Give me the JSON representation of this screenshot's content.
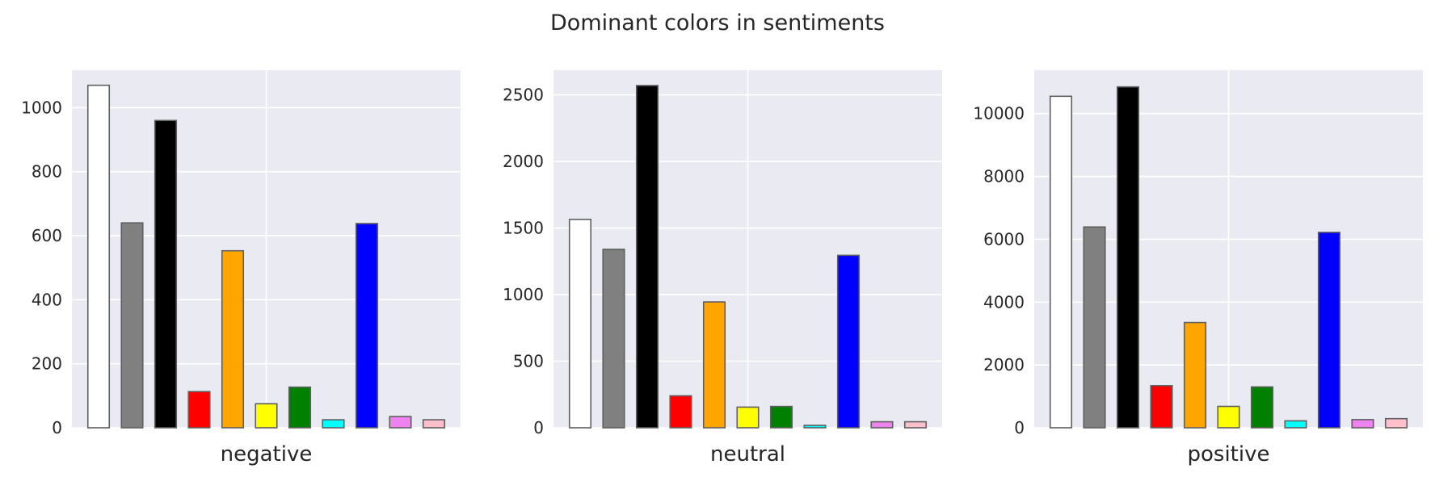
{
  "title": "Dominant colors in sentiments",
  "chart_data": [
    {
      "type": "bar",
      "xlabel": "negative",
      "ylabel": "",
      "categories": [
        "white",
        "grey",
        "black",
        "red",
        "orange",
        "yellow",
        "green",
        "cyan",
        "blue",
        "violet",
        "pink"
      ],
      "bar_colors": [
        "#ffffff",
        "#808080",
        "#000000",
        "#ff0000",
        "#ffa500",
        "#ffff00",
        "#008000",
        "#00ffff",
        "#0000ff",
        "#ee82ee",
        "#ffc0cb"
      ],
      "values": [
        1070,
        640,
        960,
        113,
        553,
        75,
        127,
        25,
        638,
        35,
        25
      ],
      "ylim": [
        0,
        1117
      ],
      "yticks": [
        0,
        200,
        400,
        600,
        800,
        1000
      ],
      "grid": true
    },
    {
      "type": "bar",
      "xlabel": "neutral",
      "ylabel": "",
      "categories": [
        "white",
        "grey",
        "black",
        "red",
        "orange",
        "yellow",
        "green",
        "cyan",
        "blue",
        "violet",
        "pink"
      ],
      "bar_colors": [
        "#ffffff",
        "#808080",
        "#000000",
        "#ff0000",
        "#ffa500",
        "#ffff00",
        "#008000",
        "#00ffff",
        "#0000ff",
        "#ee82ee",
        "#ffc0cb"
      ],
      "values": [
        1565,
        1340,
        2570,
        240,
        945,
        155,
        160,
        18,
        1295,
        45,
        45
      ],
      "ylim": [
        0,
        2685
      ],
      "yticks": [
        0,
        500,
        1000,
        1500,
        2000,
        2500
      ],
      "grid": true
    },
    {
      "type": "bar",
      "xlabel": "positive",
      "ylabel": "",
      "categories": [
        "white",
        "grey",
        "black",
        "red",
        "orange",
        "yellow",
        "green",
        "cyan",
        "blue",
        "violet",
        "pink"
      ],
      "bar_colors": [
        "#ffffff",
        "#808080",
        "#000000",
        "#ff0000",
        "#ffa500",
        "#ffff00",
        "#008000",
        "#00ffff",
        "#0000ff",
        "#ee82ee",
        "#ffc0cb"
      ],
      "values": [
        10550,
        6390,
        10850,
        1340,
        3350,
        680,
        1300,
        220,
        6220,
        260,
        290
      ],
      "ylim": [
        0,
        11380
      ],
      "yticks": [
        0,
        2000,
        4000,
        6000,
        8000,
        10000
      ],
      "grid": true
    }
  ]
}
